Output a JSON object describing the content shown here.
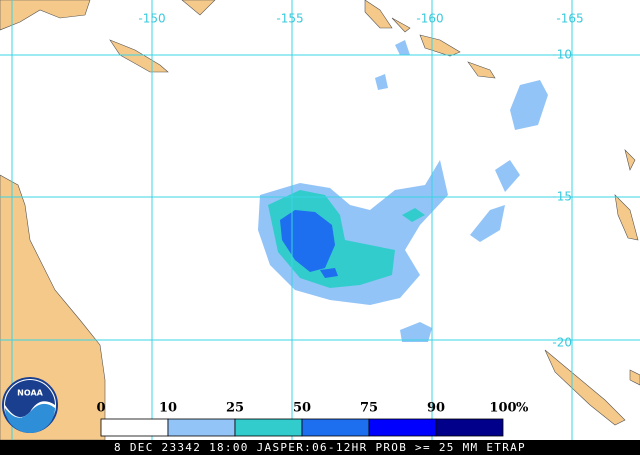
{
  "map": {
    "longitude_labels": [
      -150,
      -155,
      -160,
      -165
    ],
    "latitude_labels": [
      -10,
      -15,
      -20
    ],
    "logo": "NOAA",
    "legend": {
      "ticks": [
        0,
        10,
        25,
        50,
        75,
        90,
        100
      ],
      "unit": "%",
      "colors": [
        "#ffffff",
        "#93c4f7",
        "#33cccc",
        "#1e6ef0",
        "#0000ff",
        "#00008b"
      ]
    },
    "footer": "8 DEC 23342 18:00 JASPER:06-12HR PROB >= 25 MM ETRAP"
  }
}
